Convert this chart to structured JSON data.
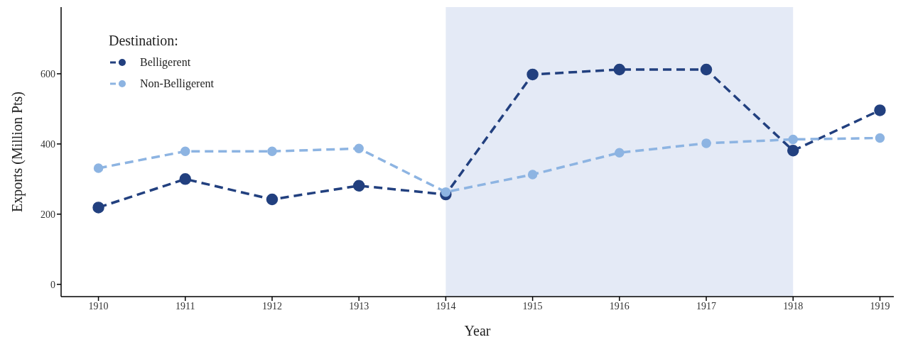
{
  "chart_data": {
    "type": "line",
    "xlabel": "Year",
    "ylabel": "Exports (Million Pts)",
    "legend_title": "Destination:",
    "x": [
      1910,
      1911,
      1912,
      1913,
      1914,
      1915,
      1916,
      1917,
      1918,
      1919
    ],
    "series": [
      {
        "name": "Belligerent",
        "color": "#22407f",
        "values": [
          219,
          300,
          242,
          281,
          256,
          598,
          612,
          612,
          381,
          496
        ]
      },
      {
        "name": "Non-Belligerent",
        "color": "#8db4e2",
        "values": [
          331,
          379,
          379,
          387,
          263,
          313,
          375,
          402,
          413,
          417
        ]
      }
    ],
    "xlim": [
      1909.57,
      1919.16
    ],
    "xticks": [
      1910,
      1911,
      1912,
      1913,
      1914,
      1915,
      1916,
      1917,
      1918,
      1919
    ],
    "ylim": [
      -35,
      790
    ],
    "yticks": [
      0,
      200,
      400,
      600
    ],
    "bands": [
      {
        "axis": "x",
        "from": 1914,
        "to": 1918,
        "color": "#e4eaf6"
      }
    ],
    "legend": "top left",
    "marker": "circle",
    "line_style": "dashed",
    "grid": false
  }
}
